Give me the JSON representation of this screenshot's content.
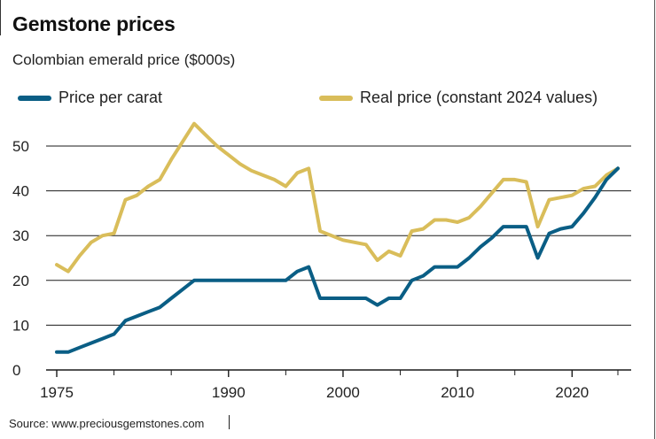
{
  "title": "Gemstone prices",
  "subtitle": "Colombian emerald price ($000s)",
  "source": "Source: www.preciousgemstones.com",
  "colors": {
    "price_per_carat": "#0a5e85",
    "real_price": "#d9bd5a",
    "gridline": "#1a1a1a"
  },
  "chart_data": {
    "type": "line",
    "title": "Gemstone prices",
    "subtitle": "Colombian emerald price ($000s)",
    "xlabel": "",
    "ylabel": "",
    "xlim": [
      1975,
      2025
    ],
    "ylim": [
      0,
      55
    ],
    "grid": true,
    "legend_position": "top",
    "x_ticks": [
      "1975",
      "1990",
      "2000",
      "2010",
      "2020"
    ],
    "x_tick_values": [
      1975,
      1990,
      2000,
      2010,
      2020
    ],
    "y_ticks": [
      "0",
      "10",
      "20",
      "30",
      "40",
      "50"
    ],
    "y_tick_values": [
      0,
      10,
      20,
      30,
      40,
      50
    ],
    "series": [
      {
        "name": "Price per carat",
        "color": "#0a5e85",
        "x": [
          1975,
          1976,
          1977,
          1978,
          1979,
          1980,
          1981,
          1982,
          1983,
          1984,
          1985,
          1986,
          1987,
          1988,
          1989,
          1990,
          1991,
          1992,
          1993,
          1994,
          1995,
          1996,
          1997,
          1998,
          1999,
          2000,
          2001,
          2002,
          2003,
          2004,
          2005,
          2006,
          2007,
          2008,
          2009,
          2010,
          2011,
          2012,
          2013,
          2014,
          2015,
          2016,
          2017,
          2018,
          2019,
          2020,
          2021,
          2022,
          2023,
          2024
        ],
        "values": [
          4,
          4,
          5,
          6,
          7,
          8,
          11,
          12,
          13,
          14,
          16,
          18,
          20,
          20,
          20,
          20,
          20,
          20,
          20,
          20,
          20,
          22,
          23,
          16,
          16,
          16,
          16,
          16,
          14.5,
          16,
          16,
          20,
          21,
          23,
          23,
          23,
          25,
          27.5,
          29.5,
          32,
          32,
          32,
          25,
          30.5,
          31.5,
          32,
          35,
          38.5,
          42.5,
          45
        ]
      },
      {
        "name": "Real price (constant 2024 values)",
        "color": "#d9bd5a",
        "x": [
          1975,
          1976,
          1977,
          1978,
          1979,
          1980,
          1981,
          1982,
          1983,
          1984,
          1985,
          1986,
          1987,
          1988,
          1989,
          1990,
          1991,
          1992,
          1993,
          1994,
          1995,
          1996,
          1997,
          1998,
          1999,
          2000,
          2001,
          2002,
          2003,
          2004,
          2005,
          2006,
          2007,
          2008,
          2009,
          2010,
          2011,
          2012,
          2013,
          2014,
          2015,
          2016,
          2017,
          2018,
          2019,
          2020,
          2021,
          2022,
          2023,
          2024
        ],
        "values": [
          23.5,
          22,
          25.5,
          28.5,
          30,
          30.5,
          38,
          39,
          41,
          42.5,
          47,
          51,
          55,
          52.5,
          50,
          48,
          46,
          44.5,
          43.5,
          42.5,
          41,
          44,
          45,
          31,
          30,
          29,
          28.5,
          28,
          24.5,
          26.5,
          25.5,
          31,
          31.5,
          33.5,
          33.5,
          33,
          34,
          36.5,
          39.5,
          42.5,
          42.5,
          42,
          32,
          38,
          38.5,
          39,
          40.5,
          41,
          43.5,
          45
        ]
      }
    ]
  }
}
